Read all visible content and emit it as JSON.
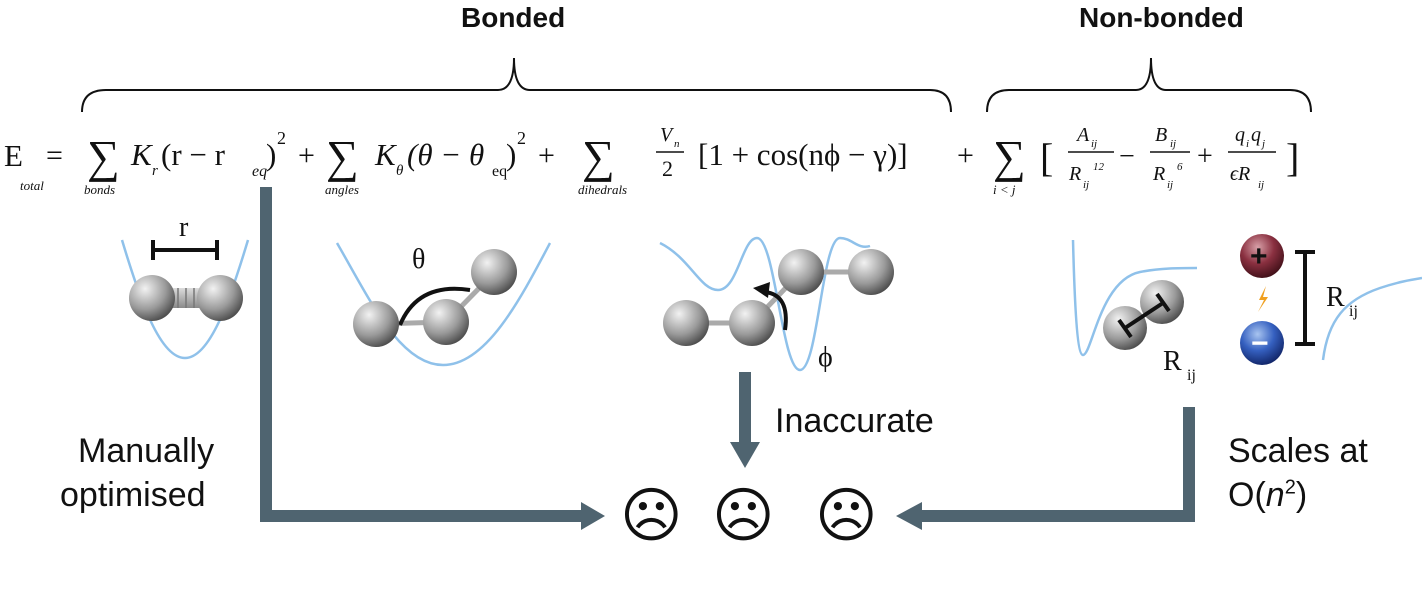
{
  "headers": {
    "bonded": "Bonded",
    "non_bonded": "Non-bonded"
  },
  "equation": {
    "lhs": "E",
    "lhs_sub": "total",
    "equals": "=",
    "sigma": "∑",
    "sub_bonds": "bonds",
    "sub_angles": "angles",
    "sub_dihedrals": "dihedrals",
    "sub_pairs": "i < j",
    "bond_k": "K",
    "bond_k_sub": "r",
    "bond_open": "(r − r",
    "bond_eq_sub": "eq",
    "close_paren": ")",
    "square": "2",
    "plus": "+",
    "angle_k": "K",
    "angle_k_sub": "θ",
    "angle_open": "(θ − θ",
    "angle_eq_sub": "eq",
    "dihedral_num": "V",
    "dihedral_num_sub": "n",
    "dihedral_den": "2",
    "dihedral_bracket": "[1 + cos(nϕ − γ)]",
    "lj_open": "[",
    "lj_close": "]",
    "lj_a": "A",
    "lj_a_sub": "ij",
    "lj_r": "R",
    "lj_r_sub": "ij",
    "lj_12": "12",
    "minus": "−",
    "lj_b": "B",
    "lj_b_sub": "ij",
    "lj_6": "6",
    "coul_q1": "q",
    "coul_q1_sub": "i",
    "coul_q2": "q",
    "coul_q2_sub": "j",
    "coul_den": "ϵR",
    "coul_den_sub": "ij"
  },
  "panels": {
    "bond_label": "r",
    "angle_label": "θ",
    "dihedral_label": "ϕ",
    "lj_label": "R",
    "lj_label_sub": "ij",
    "coulomb_label": "R",
    "coulomb_label_sub": "ij",
    "plus_sign": "+",
    "minus_sign": "−"
  },
  "annotations": {
    "manual_line1": "Manually",
    "manual_line2": "optimised",
    "inaccurate": "Inaccurate",
    "scales_line1": "Scales at",
    "scales_o": "O(",
    "scales_n": "n",
    "scales_exp": "2",
    "scales_close": ")"
  },
  "faces": {
    "sad": "☹"
  },
  "colors": {
    "arrow": "#4f6470",
    "curve": "#8fc1ea",
    "atom_light": "#e6e6e6",
    "atom_dark": "#6a6a6a",
    "plus_ion": "#7a2a35",
    "minus_ion": "#2a4fa8",
    "spark": "#f0a020"
  }
}
